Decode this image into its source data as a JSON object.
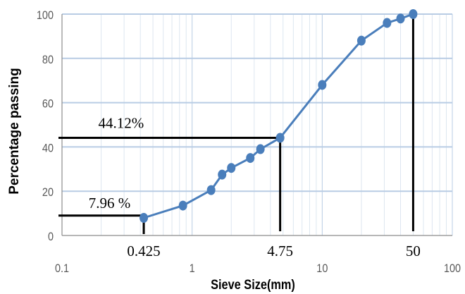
{
  "chart_data": {
    "type": "line",
    "title": "",
    "xlabel": "Sieve Size(mm)",
    "ylabel": "Percentage passing",
    "x_scale": "log",
    "xlim": [
      0.1,
      100
    ],
    "ylim": [
      0,
      100
    ],
    "x_ticks": [
      "0.1",
      "1",
      "10",
      "100"
    ],
    "y_ticks": [
      "0",
      "20",
      "40",
      "60",
      "80",
      "100"
    ],
    "grid": {
      "vertical": true,
      "horizontal": true
    },
    "series": [
      {
        "color": "#4a7ebb",
        "x": [
          0.425,
          0.85,
          1.4,
          1.7,
          2.0,
          2.8,
          3.35,
          4.75,
          10,
          20,
          31.5,
          40,
          50
        ],
        "y": [
          7.96,
          13.5,
          20.5,
          27.5,
          30.5,
          35,
          39,
          44.12,
          68,
          88,
          96,
          98,
          100
        ]
      }
    ],
    "annotations": {
      "labels": [
        {
          "text": "44.12%",
          "x": 0.19,
          "y": 48.5
        },
        {
          "text": "7.96 %",
          "x": 0.16,
          "y": 12.5
        }
      ],
      "highlight_ticks": [
        {
          "text": "0.425",
          "value": 0.425
        },
        {
          "text": "4.75",
          "value": 4.75
        },
        {
          "text": "50",
          "value": 50
        }
      ],
      "reference_lines": [
        {
          "x": 4.75,
          "y": 44.12
        },
        {
          "x": 0.425,
          "y": 9
        },
        {
          "x": 50,
          "y": 100
        }
      ],
      "line_color": "#000000"
    },
    "colors": {
      "series": "#4a7ebb",
      "grid_major": "#b8cce4",
      "grid_minor": "#dde6f0",
      "axis": "#8c8c8c",
      "text": "#595959"
    }
  }
}
